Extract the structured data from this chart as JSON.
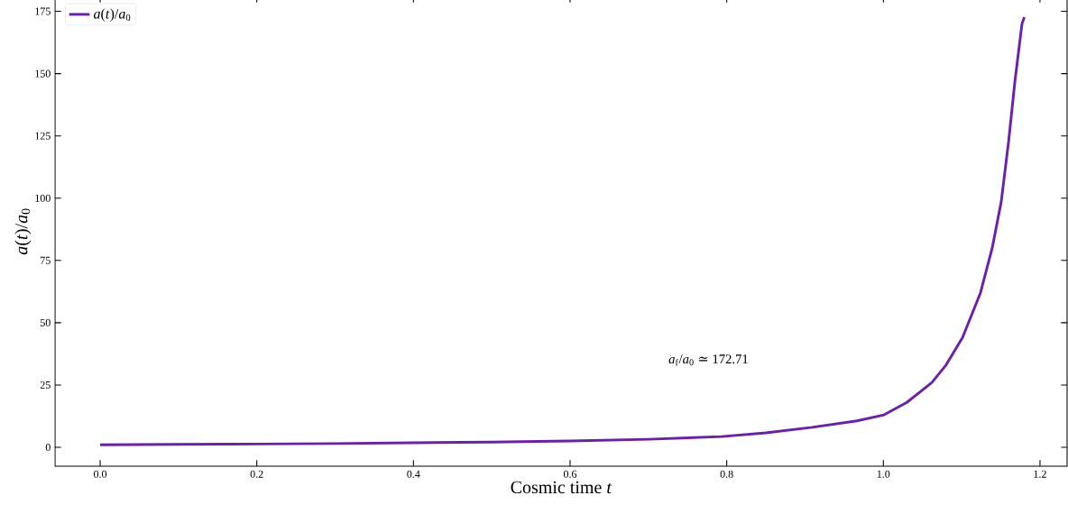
{
  "chart_data": {
    "type": "line",
    "xlabel": "Cosmic time *t*",
    "ylabel": "*a*(*t*)/*a*$_{0}$",
    "annotations": [
      "*a*$_{f}$/*a*$_{0}$ ≃ 172.71"
    ],
    "x": [
      0,
      0.1,
      0.2,
      0.3,
      0.4,
      0.5,
      0.6,
      0.7,
      0.7935,
      0.85,
      0.909,
      0.966,
      1.0008,
      1.03,
      1.062,
      1.08,
      1.101,
      1.124,
      1.139,
      1.1505,
      1.16,
      1.168,
      1.177,
      1.18
    ],
    "series": [
      {
        "name": "*a*(*t*)/*a*$_{0}$",
        "color": "#6a1fae",
        "values": [
          1.0,
          1.2,
          1.3,
          1.5,
          1.8,
          2.1,
          2.5,
          3.2,
          4.3,
          5.8,
          8.0,
          10.6,
          13,
          18,
          26,
          33,
          44,
          62,
          80,
          98.6,
          123,
          147,
          170,
          172.71
        ]
      }
    ],
    "xlim": [
      -0.0576,
      1.2346
    ],
    "ylim": [
      -7.6,
      181
    ],
    "xticks": [
      {
        "value": 0,
        "label": "0.0"
      },
      {
        "value": 0.2,
        "label": "0.2"
      },
      {
        "value": 0.4,
        "label": "0.4"
      },
      {
        "value": 0.6,
        "label": "0.6"
      },
      {
        "value": 0.8,
        "label": "0.8"
      },
      {
        "value": 1.0,
        "label": "1.0"
      },
      {
        "value": 1.2,
        "label": "1.2"
      }
    ],
    "yticks": [
      0,
      25,
      50,
      75,
      100,
      125,
      150,
      175
    ],
    "legend": "top left",
    "grid": false,
    "marker": "none",
    "line_style": "solid"
  }
}
